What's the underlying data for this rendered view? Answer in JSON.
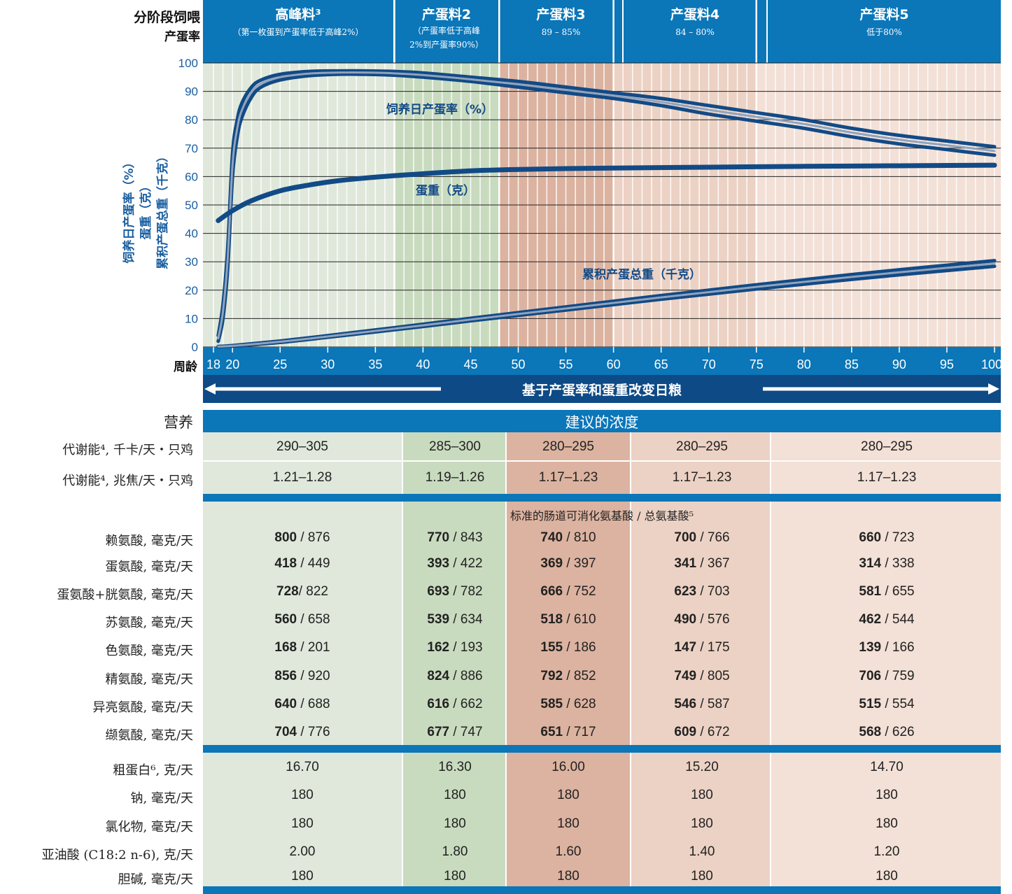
{
  "header": {
    "feeding_label": "分阶段饲喂",
    "rate_label": "产蛋率",
    "age_label": "周龄",
    "phases": [
      {
        "name": "高峰料³",
        "sub1": "（第一枚蛋到产蛋率低于高峰2%）",
        "sub2": ""
      },
      {
        "name": "产蛋料2",
        "sub1": "（产蛋率低于高峰",
        "sub2": "2%到产蛋率90%）"
      },
      {
        "name": "产蛋料3",
        "sub1": "89 – 85%",
        "sub2": ""
      },
      {
        "name": "产蛋料4",
        "sub1": "84 – 80%",
        "sub2": ""
      },
      {
        "name": "产蛋料5",
        "sub1": "低于80%",
        "sub2": ""
      }
    ]
  },
  "axis": {
    "y_label_1": "饲养日产蛋率（%）",
    "y_label_2": "蛋重（克）",
    "y_label_3": "累积产蛋总重（千克）",
    "arrow_text": "基于产蛋率和蛋重改变日粮"
  },
  "chart_data": {
    "type": "line",
    "xlim": [
      18,
      100
    ],
    "ylim": [
      0,
      100
    ],
    "x_ticks": [
      18,
      20,
      25,
      30,
      35,
      40,
      45,
      50,
      55,
      60,
      65,
      70,
      75,
      80,
      85,
      90,
      95,
      100
    ],
    "y_ticks": [
      0,
      10,
      20,
      30,
      40,
      50,
      60,
      70,
      80,
      90,
      100
    ],
    "phase_boundaries_weeks": [
      18,
      37,
      48,
      60,
      75,
      100
    ],
    "series": [
      {
        "name": "饲养日产蛋率（%）",
        "band": true,
        "x": [
          18.5,
          19,
          19.5,
          20,
          20.5,
          21,
          22,
          23,
          25,
          28,
          31,
          34,
          37,
          40,
          45,
          50,
          55,
          60,
          65,
          70,
          75,
          80,
          85,
          90,
          95,
          100
        ],
        "upper": [
          4,
          15,
          35,
          68,
          80,
          86,
          91.5,
          94,
          96,
          97,
          97.2,
          97.2,
          97,
          96.5,
          95,
          93.5,
          91.5,
          89.5,
          87.5,
          85,
          82.5,
          80,
          77,
          74.5,
          72.5,
          70.5
        ],
        "lower": [
          2,
          10,
          28,
          60,
          74,
          81,
          88,
          91.5,
          94,
          95.5,
          96,
          96,
          95.7,
          95,
          93.5,
          91.5,
          89.5,
          87.5,
          85,
          82,
          79.5,
          77,
          74,
          71.5,
          69.5,
          67.5
        ]
      },
      {
        "name": "蛋重（克）",
        "x": [
          18.5,
          20,
          22,
          25,
          28,
          31,
          35,
          40,
          45,
          50,
          55,
          60,
          70,
          80,
          90,
          100
        ],
        "values": [
          44.5,
          48,
          51.5,
          55,
          57,
          58.5,
          59.8,
          61,
          62,
          62.5,
          62.8,
          63,
          63.3,
          63.6,
          63.8,
          64
        ]
      },
      {
        "name": "累积产蛋总重（千克）",
        "band": true,
        "x": [
          18.5,
          20,
          25,
          30,
          35,
          40,
          45,
          50,
          55,
          60,
          65,
          70,
          75,
          80,
          85,
          90,
          95,
          100
        ],
        "upper": [
          0.2,
          0.5,
          2.1,
          4.0,
          6.0,
          8.0,
          10.1,
          12.1,
          14.1,
          16.1,
          18.1,
          20.0,
          21.9,
          23.7,
          25.5,
          27.2,
          28.8,
          30.4
        ],
        "lower": [
          0.1,
          0.3,
          1.6,
          3.4,
          5.3,
          7.2,
          9.2,
          11.1,
          13.0,
          14.9,
          16.8,
          18.6,
          20.4,
          22.1,
          23.8,
          25.4,
          26.9,
          28.4
        ]
      }
    ],
    "labels": {
      "rate": "饲养日产蛋率（%）",
      "weight": "蛋重（克）",
      "mass": "累积产蛋总重（千克）"
    }
  },
  "table": {
    "header_left": "营养",
    "header_right": "建议的浓度",
    "amino_header": "标准的肠道可消化氨基酸 / 总氨基酸⁵",
    "energy_rows": [
      {
        "label": "代谢能⁴, 千卡/天・只鸡",
        "values": [
          "290–305",
          "285–300",
          "280–295",
          "280–295",
          "280–295"
        ]
      },
      {
        "label": "代谢能⁴, 兆焦/天・只鸡",
        "values": [
          "1.21–1.28",
          "1.19–1.26",
          "1.17–1.23",
          "1.17–1.23",
          "1.17–1.23"
        ]
      }
    ],
    "amino_rows": [
      {
        "label": "赖氨酸, 毫克/天",
        "bold": [
          "800",
          "770",
          "740",
          "700",
          "660"
        ],
        "rest": [
          " / 876",
          " / 843",
          " / 810",
          " / 766",
          " / 723"
        ]
      },
      {
        "label": "蛋氨酸, 毫克/天",
        "bold": [
          "418",
          "393",
          "369",
          "341",
          "314"
        ],
        "rest": [
          " / 449",
          " / 422",
          " / 397",
          " / 367",
          " / 338"
        ]
      },
      {
        "label": "蛋氨酸+胱氨酸, 毫克/天",
        "bold": [
          "728",
          "693",
          "666",
          "623",
          "581"
        ],
        "rest": [
          "/ 822",
          " / 782",
          " / 752",
          " / 703",
          " / 655"
        ]
      },
      {
        "label": "苏氨酸, 毫克/天",
        "bold": [
          "560",
          "539",
          "518",
          "490",
          "462"
        ],
        "rest": [
          " / 658",
          " / 634",
          " / 610",
          " / 576",
          " / 544"
        ]
      },
      {
        "label": "色氨酸, 毫克/天",
        "bold": [
          "168",
          "162",
          "155",
          "147",
          "139"
        ],
        "rest": [
          " / 201",
          " / 193",
          " / 186",
          " / 175",
          " / 166"
        ]
      },
      {
        "label": "精氨酸, 毫克/天",
        "bold": [
          "856",
          "824",
          "792",
          "749",
          "706"
        ],
        "rest": [
          " / 920",
          " / 886",
          " / 852",
          " / 805",
          " / 759"
        ]
      },
      {
        "label": "异亮氨酸, 毫克/天",
        "bold": [
          "640",
          "616",
          "585",
          "546",
          "515"
        ],
        "rest": [
          " / 688",
          " / 662",
          " / 628",
          " / 587",
          " / 554"
        ]
      },
      {
        "label": "缬氨酸, 毫克/天",
        "bold": [
          "704",
          "677",
          "651",
          "609",
          "568"
        ],
        "rest": [
          " / 776",
          " / 747",
          " / 717",
          " / 672",
          " / 626"
        ]
      }
    ],
    "other_rows": [
      {
        "label": "粗蛋白⁶, 克/天",
        "values": [
          "16.70",
          "16.30",
          "16.00",
          "15.20",
          "14.70"
        ]
      },
      {
        "label": "钠, 毫克/天",
        "values": [
          "180",
          "180",
          "180",
          "180",
          "180"
        ]
      },
      {
        "label": "氯化物, 毫克/天",
        "values": [
          "180",
          "180",
          "180",
          "180",
          "180"
        ]
      },
      {
        "label": "亚油酸 (C18:2 n-6), 克/天",
        "values": [
          "2.00",
          "1.80",
          "1.60",
          "1.40",
          "1.20"
        ]
      },
      {
        "label": "胆碱, 毫克/天",
        "values": [
          "180",
          "180",
          "180",
          "180",
          "180"
        ]
      }
    ]
  },
  "colors": {
    "blue": "#0b76b8",
    "navy": "#124a86",
    "phase1": "#dfe8da",
    "phase2": "#c9dbbf",
    "phase3": "#dcb3a0",
    "phase4": "#ecd2c4",
    "phase5": "#f3e0d6"
  }
}
